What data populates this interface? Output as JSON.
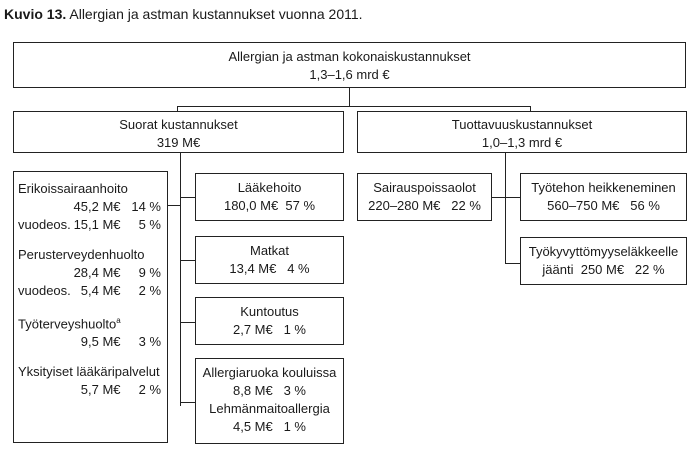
{
  "title": {
    "prefix": "Kuvio 13.",
    "text": "Allergian ja astman kustannukset vuonna 2011."
  },
  "total": {
    "label": "Allergian ja astman kokonaiskustannukset",
    "value": "1,3–1,6 mrd €"
  },
  "direct": {
    "label": "Suorat kustannukset",
    "value": "319 M€"
  },
  "productivity": {
    "label": "Tuottavuuskustannukset",
    "value": "1,0–1,3 mrd €"
  },
  "left_list": {
    "erikois": {
      "label": "Erikoissairaanhoito",
      "value": "45,2 M€   14 %",
      "sub_label": "vuodeos.",
      "sub_value": "15,1 M€     5 %"
    },
    "peruster": {
      "label": "Perusterveydenhuolto",
      "value": "28,4 M€     9 %",
      "sub_label": "vuodeos.",
      "sub_value": "5,4 M€     2 %"
    },
    "tyoterv": {
      "label": "Työterveyshuolto",
      "sup": "a",
      "value": "9,5 M€     3 %"
    },
    "yksit": {
      "label": "Yksityiset lääkäripalvelut",
      "value": "5,7 M€     2 %"
    }
  },
  "laakehoito": {
    "label": "Lääkehoito",
    "value": "180,0 M€  57 %"
  },
  "matkat": {
    "label": "Matkat",
    "value": "13,4 M€   4 %"
  },
  "kuntoutus": {
    "label": "Kuntoutus",
    "value": "2,7 M€   1 %"
  },
  "allergiaruoka": {
    "label": "Allergiaruoka kouluissa",
    "value": "8,8 M€   3 %",
    "label2": "Lehmänmaitoallergia",
    "value2": "4,5 M€   1 %"
  },
  "sairaus": {
    "label": "Sairauspoissaolot",
    "value": "220–280 M€   22 %"
  },
  "tyoteho": {
    "label": "Työtehon heikkeneminen",
    "value": "560–750 M€   56 %"
  },
  "tyokyvytt": {
    "label": "Työkyvyttömyyseläkkeelle",
    "value": "jäänti  250 M€   22 %"
  }
}
